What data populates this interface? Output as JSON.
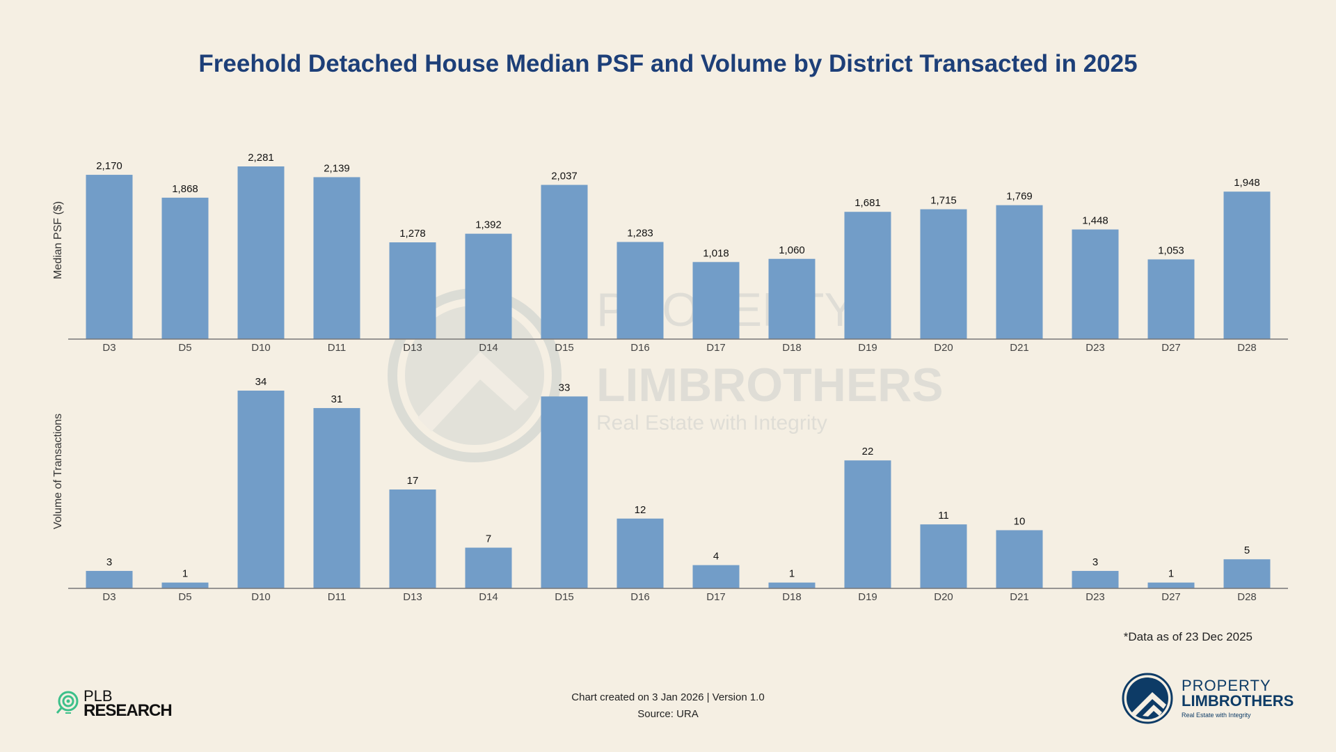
{
  "title": "Freehold Detached House Median PSF and Volume by District Transacted in 2025",
  "colors": {
    "bar": "#729dc8",
    "title": "#1d3f78",
    "background": "#f5efe3",
    "watermark": "#c9cfcd"
  },
  "chart_data": [
    {
      "type": "bar",
      "ylabel": "Median PSF ($)",
      "categories": [
        "D3",
        "D5",
        "D10",
        "D11",
        "D13",
        "D14",
        "D15",
        "D16",
        "D17",
        "D18",
        "D19",
        "D20",
        "D21",
        "D23",
        "D27",
        "D28"
      ],
      "values": [
        2170,
        1868,
        2281,
        2139,
        1278,
        1392,
        2037,
        1283,
        1018,
        1060,
        1681,
        1715,
        1769,
        1448,
        1053,
        1948
      ],
      "labels": [
        "2,170",
        "1,868",
        "2,281",
        "2,139",
        "1,278",
        "1,392",
        "2,037",
        "1,283",
        "1,018",
        "1,060",
        "1,681",
        "1,715",
        "1,769",
        "1,448",
        "1,053",
        "1,948"
      ]
    },
    {
      "type": "bar",
      "ylabel": "Volume of Transactions",
      "categories": [
        "D3",
        "D5",
        "D10",
        "D11",
        "D13",
        "D14",
        "D15",
        "D16",
        "D17",
        "D18",
        "D19",
        "D20",
        "D21",
        "D23",
        "D27",
        "D28"
      ],
      "values": [
        3,
        1,
        34,
        31,
        17,
        7,
        33,
        12,
        4,
        1,
        22,
        11,
        10,
        3,
        1,
        5
      ],
      "labels": [
        "3",
        "1",
        "34",
        "31",
        "17",
        "7",
        "33",
        "12",
        "4",
        "1",
        "22",
        "11",
        "10",
        "3",
        "1",
        "5"
      ]
    }
  ],
  "footnote": "*Data as of 23 Dec 2025",
  "created": "Chart created on 3 Jan 2026 | Version 1.0",
  "source": "Source: URA",
  "watermark": {
    "line1": "PROPERTY",
    "line2": "LIMBROTHERS",
    "line3": "Real Estate with Integrity"
  },
  "logo_left": {
    "line1": "PLB",
    "line2": "RESEARCH"
  },
  "logo_right": {
    "line1": "PROPERTY",
    "line2": "LIMBROTHERS",
    "line3": "Real Estate with Integrity"
  }
}
